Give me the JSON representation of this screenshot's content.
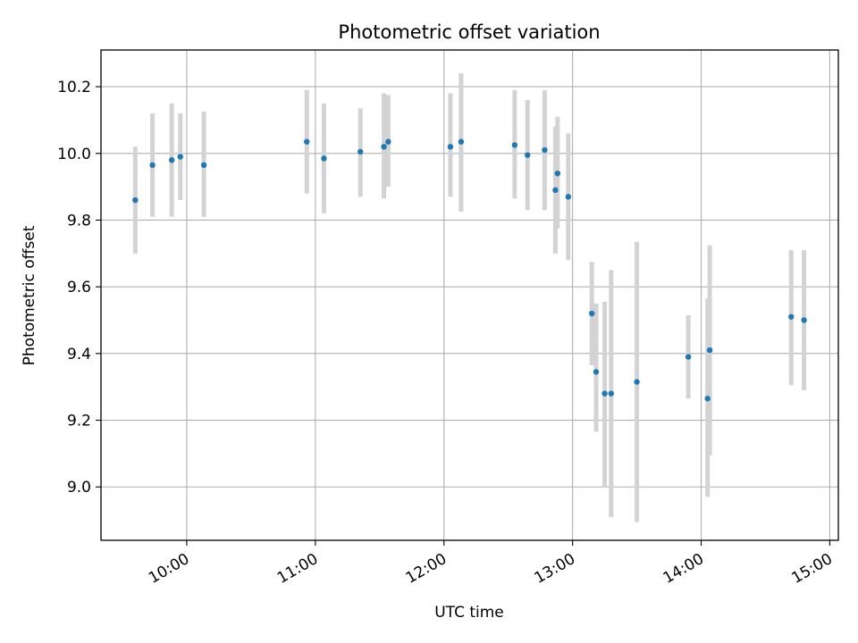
{
  "chart_data": {
    "type": "scatter",
    "title": "Photometric offset variation",
    "xlabel": "UTC time",
    "ylabel": "Photometric offset",
    "grid": true,
    "x_axis_type": "time",
    "xlim": [
      "09:20",
      "15:04"
    ],
    "ylim": [
      8.84,
      10.31
    ],
    "x_ticks": [
      "10:00",
      "11:00",
      "12:00",
      "13:00",
      "14:00",
      "15:00"
    ],
    "y_ticks": [
      9.0,
      9.2,
      9.4,
      9.6,
      9.8,
      10.0,
      10.2
    ],
    "y_tick_labels": [
      "9.0",
      "9.2",
      "9.4",
      "9.6",
      "9.8",
      "10.0",
      "10.2"
    ],
    "colors": {
      "points": "#1f77b4",
      "errorbars": "#d3d3d3",
      "grid": "#b0b0b0"
    },
    "points": [
      {
        "x": "09:36",
        "y": 9.86,
        "err_low": 9.7,
        "err_high": 10.02
      },
      {
        "x": "09:44",
        "y": 9.965,
        "err_low": 9.81,
        "err_high": 10.12
      },
      {
        "x": "09:53",
        "y": 9.98,
        "err_low": 9.81,
        "err_high": 10.15
      },
      {
        "x": "09:57",
        "y": 9.99,
        "err_low": 9.86,
        "err_high": 10.12
      },
      {
        "x": "10:08",
        "y": 9.965,
        "err_low": 9.81,
        "err_high": 10.125
      },
      {
        "x": "10:56",
        "y": 10.035,
        "err_low": 9.88,
        "err_high": 10.19
      },
      {
        "x": "11:04",
        "y": 9.985,
        "err_low": 9.82,
        "err_high": 10.15
      },
      {
        "x": "11:21",
        "y": 10.005,
        "err_low": 9.87,
        "err_high": 10.135
      },
      {
        "x": "11:32",
        "y": 10.02,
        "err_low": 9.865,
        "err_high": 10.18
      },
      {
        "x": "11:34",
        "y": 10.035,
        "err_low": 9.9,
        "err_high": 10.175
      },
      {
        "x": "12:03",
        "y": 10.02,
        "err_low": 9.87,
        "err_high": 10.18
      },
      {
        "x": "12:08",
        "y": 10.035,
        "err_low": 9.825,
        "err_high": 10.24
      },
      {
        "x": "12:33",
        "y": 10.025,
        "err_low": 9.865,
        "err_high": 10.19
      },
      {
        "x": "12:39",
        "y": 9.995,
        "err_low": 9.83,
        "err_high": 10.16
      },
      {
        "x": "12:47",
        "y": 10.01,
        "err_low": 9.83,
        "err_high": 10.19
      },
      {
        "x": "12:52",
        "y": 9.89,
        "err_low": 9.7,
        "err_high": 10.08
      },
      {
        "x": "12:53",
        "y": 9.94,
        "err_low": 9.775,
        "err_high": 10.11
      },
      {
        "x": "12:58",
        "y": 9.87,
        "err_low": 9.68,
        "err_high": 10.06
      },
      {
        "x": "13:09",
        "y": 9.52,
        "err_low": 9.365,
        "err_high": 9.675
      },
      {
        "x": "13:11",
        "y": 9.345,
        "err_low": 9.165,
        "err_high": 9.55
      },
      {
        "x": "13:15",
        "y": 9.28,
        "err_low": 9.0,
        "err_high": 9.555
      },
      {
        "x": "13:18",
        "y": 9.28,
        "err_low": 8.91,
        "err_high": 9.65
      },
      {
        "x": "13:30",
        "y": 9.315,
        "err_low": 8.895,
        "err_high": 9.735
      },
      {
        "x": "13:54",
        "y": 9.39,
        "err_low": 9.265,
        "err_high": 9.515
      },
      {
        "x": "14:03",
        "y": 9.265,
        "err_low": 8.97,
        "err_high": 9.565
      },
      {
        "x": "14:04",
        "y": 9.41,
        "err_low": 9.095,
        "err_high": 9.725
      },
      {
        "x": "14:42",
        "y": 9.51,
        "err_low": 9.305,
        "err_high": 9.71
      },
      {
        "x": "14:48",
        "y": 9.5,
        "err_low": 9.29,
        "err_high": 9.71
      }
    ]
  }
}
